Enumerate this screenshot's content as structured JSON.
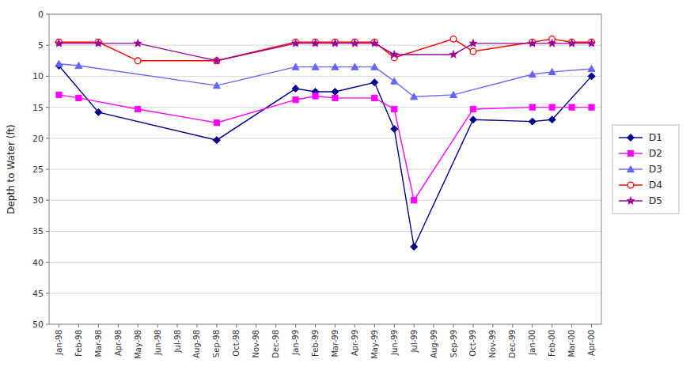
{
  "chart_data": {
    "type": "line",
    "y_label": "Depth to Water (ft)",
    "categories": [
      "Jan-98",
      "Feb-98",
      "Mar-98",
      "Apr-98",
      "May-98",
      "Jun-98",
      "Jul-98",
      "Aug-98",
      "Sep-98",
      "Oct-98",
      "Nov-98",
      "Dec-98",
      "Jan-99",
      "Feb-99",
      "Mar-99",
      "Apr-99",
      "May-99",
      "Jun-99",
      "Jul-99",
      "Aug-99",
      "Sep-99",
      "Oct-99",
      "Nov-99",
      "Dec-99",
      "Jan-00",
      "Feb-00",
      "Mar-00",
      "Apr-00"
    ],
    "ylim": [
      50,
      0
    ],
    "yticks": [
      0,
      5,
      10,
      15,
      20,
      25,
      30,
      35,
      40,
      45,
      50
    ],
    "grid": true,
    "legend": "right",
    "series": [
      {
        "name": "D1",
        "color": "#00008B",
        "marker": "diamond",
        "x": [
          "Jan-98",
          "Mar-98",
          "Sep-98",
          "Jan-99",
          "Feb-99",
          "Mar-99",
          "May-99",
          "Jun-99",
          "Jul-99",
          "Oct-99",
          "Jan-00",
          "Feb-00",
          "Apr-00"
        ],
        "values": [
          8.3,
          15.8,
          20.3,
          12.0,
          12.5,
          12.5,
          11.0,
          18.5,
          37.5,
          17.0,
          17.3,
          17.0,
          10.0
        ]
      },
      {
        "name": "D2",
        "color": "#FF00FF",
        "marker": "square",
        "x": [
          "Jan-98",
          "Feb-98",
          "May-98",
          "Sep-98",
          "Jan-99",
          "Feb-99",
          "Mar-99",
          "May-99",
          "Jun-99",
          "Jul-99",
          "Oct-99",
          "Jan-00",
          "Feb-00",
          "Mar-00",
          "Apr-00"
        ],
        "values": [
          13.0,
          13.5,
          15.3,
          17.5,
          13.8,
          13.2,
          13.5,
          13.5,
          15.3,
          30.0,
          15.3,
          15.0,
          15.0,
          15.0,
          15.0
        ]
      },
      {
        "name": "D3",
        "color": "#6666FF",
        "marker": "triangle",
        "x": [
          "Jan-98",
          "Feb-98",
          "Sep-98",
          "Jan-99",
          "Feb-99",
          "Mar-99",
          "Apr-99",
          "May-99",
          "Jun-99",
          "Jul-99",
          "Sep-99",
          "Jan-00",
          "Feb-00",
          "Apr-00"
        ],
        "values": [
          8.0,
          8.3,
          11.5,
          8.5,
          8.5,
          8.5,
          8.5,
          8.5,
          10.8,
          13.3,
          13.0,
          9.7,
          9.3,
          8.8
        ]
      },
      {
        "name": "D4",
        "color": "#FF0000",
        "marker": "open-circle",
        "x": [
          "Jan-98",
          "Mar-98",
          "May-98",
          "Sep-98",
          "Jan-99",
          "Feb-99",
          "Mar-99",
          "Apr-99",
          "May-99",
          "Jun-99",
          "Sep-99",
          "Oct-99",
          "Jan-00",
          "Feb-00",
          "Mar-00",
          "Apr-00"
        ],
        "values": [
          4.5,
          4.5,
          7.5,
          7.5,
          4.5,
          4.5,
          4.5,
          4.5,
          4.5,
          7.0,
          4.0,
          6.0,
          4.5,
          4.0,
          4.5,
          4.5
        ]
      },
      {
        "name": "D5",
        "color": "#990099",
        "marker": "star",
        "x": [
          "Jan-98",
          "Mar-98",
          "May-98",
          "Sep-98",
          "Jan-99",
          "Feb-99",
          "Mar-99",
          "Apr-99",
          "May-99",
          "Jun-99",
          "Sep-99",
          "Oct-99",
          "Jan-00",
          "Feb-00",
          "Mar-00",
          "Apr-00"
        ],
        "values": [
          4.7,
          4.7,
          4.7,
          7.5,
          4.7,
          4.7,
          4.7,
          4.7,
          4.7,
          6.5,
          6.5,
          4.7,
          4.7,
          4.7,
          4.7,
          4.7
        ]
      }
    ]
  }
}
